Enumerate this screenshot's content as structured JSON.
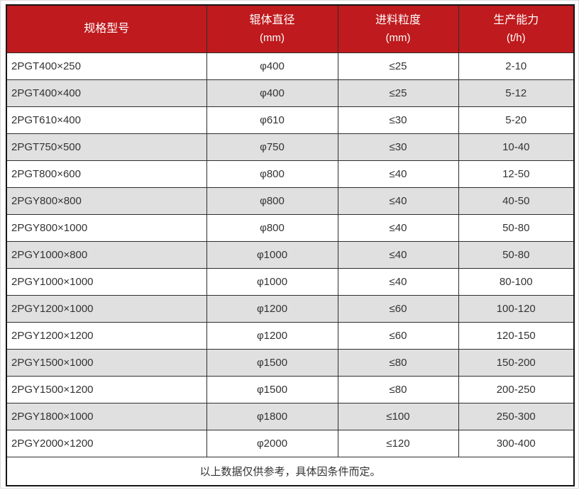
{
  "chart_data": {
    "type": "table",
    "columns": [
      {
        "label": "规格型号",
        "unit": ""
      },
      {
        "label": "辊体直径",
        "unit": "(mm)"
      },
      {
        "label": "进料粒度",
        "unit": "(mm)"
      },
      {
        "label": "生产能力",
        "unit": "(t/h)"
      }
    ],
    "rows": [
      [
        "2PGT400×250",
        "φ400",
        "≤25",
        "2-10"
      ],
      [
        "2PGT400×400",
        "φ400",
        "≤25",
        "5-12"
      ],
      [
        "2PGT610×400",
        "φ610",
        "≤30",
        "5-20"
      ],
      [
        "2PGT750×500",
        "φ750",
        "≤30",
        "10-40"
      ],
      [
        "2PGT800×600",
        "φ800",
        "≤40",
        "12-50"
      ],
      [
        "2PGY800×800",
        "φ800",
        "≤40",
        "40-50"
      ],
      [
        "2PGY800×1000",
        "φ800",
        "≤40",
        "50-80"
      ],
      [
        "2PGY1000×800",
        "φ1000",
        "≤40",
        "50-80"
      ],
      [
        "2PGY1000×1000",
        "φ1000",
        "≤40",
        "80-100"
      ],
      [
        "2PGY1200×1000",
        "φ1200",
        "≤60",
        "100-120"
      ],
      [
        "2PGY1200×1200",
        "φ1200",
        "≤60",
        "120-150"
      ],
      [
        "2PGY1500×1000",
        "φ1500",
        "≤80",
        "150-200"
      ],
      [
        "2PGY1500×1200",
        "φ1500",
        "≤80",
        "200-250"
      ],
      [
        "2PGY1800×1000",
        "φ1800",
        "≤100",
        "250-300"
      ],
      [
        "2PGY2000×1200",
        "φ2000",
        "≤120",
        "300-400"
      ]
    ],
    "footer_note": "以上数据仅供参考，具体因条件而定。",
    "layout": {
      "zebra_striping": true,
      "first_column_align": "left",
      "other_columns_align": "center"
    }
  },
  "colors": {
    "header_bg": "#bf1a1d",
    "header_text": "#ffffff",
    "row_alt_bg": "#e0e0e0",
    "border": "#2e2e2e",
    "text": "#333333"
  }
}
